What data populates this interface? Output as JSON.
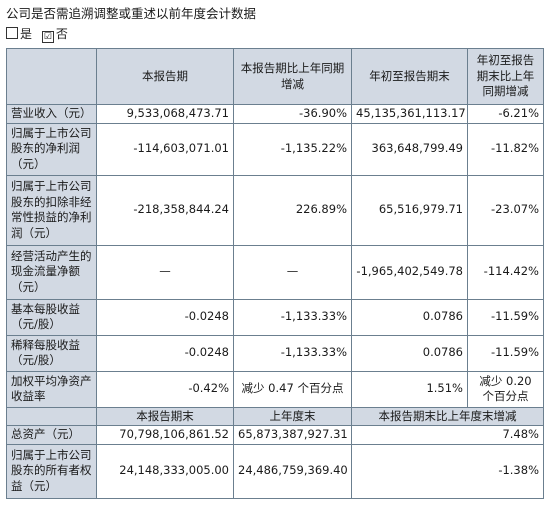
{
  "question": "公司是否需追溯调整或重述以前年度会计数据",
  "options": [
    {
      "mark": "",
      "label": "是"
    },
    {
      "mark": "☑",
      "label": "否"
    }
  ],
  "table1": {
    "headers": [
      "",
      "本报告期",
      "本报告期比上年同期增减",
      "年初至报告期末",
      "年初至报告期末比上年同期增减"
    ],
    "rows": [
      {
        "label": "营业收入（元）",
        "cells": [
          "9,533,068,473.71",
          "-36.90%",
          "45,135,361,113.17",
          "-6.21%"
        ]
      },
      {
        "label": "归属于上市公司股东的净利润（元）",
        "cells": [
          "-114,603,071.01",
          "-1,135.22%",
          "363,648,799.49",
          "-11.82%"
        ]
      },
      {
        "label": "归属于上市公司股东的扣除非经常性损益的净利润（元）",
        "cells": [
          "-218,358,844.24",
          "226.89%",
          "65,516,979.71",
          "-23.07%"
        ]
      },
      {
        "label": "经营活动产生的现金流量净额（元）",
        "cells": [
          "—",
          "—",
          "-1,965,402,549.78",
          "-114.42%"
        ]
      },
      {
        "label": "基本每股收益（元/股）",
        "cells": [
          "-0.0248",
          "-1,133.33%",
          "0.0786",
          "-11.59%"
        ]
      },
      {
        "label": "稀释每股收益（元/股）",
        "cells": [
          "-0.0248",
          "-1,133.33%",
          "0.0786",
          "-11.59%"
        ]
      },
      {
        "label": "加权平均净资产收益率",
        "cells": [
          "-0.42%",
          "减少 0.47 个百分点",
          "1.51%",
          "减少 0.20 个百分点"
        ]
      }
    ]
  },
  "table2": {
    "headers": [
      "",
      "本报告期末",
      "上年度末",
      "本报告期末比上年度末增减"
    ],
    "rows": [
      {
        "label": "总资产（元）",
        "cells": [
          "70,798,106,861.52",
          "65,873,387,927.31",
          "7.48%"
        ]
      },
      {
        "label": "归属于上市公司股东的所有者权益（元）",
        "cells": [
          "24,148,333,005.00",
          "24,486,759,369.40",
          "-1.38%"
        ]
      }
    ]
  }
}
